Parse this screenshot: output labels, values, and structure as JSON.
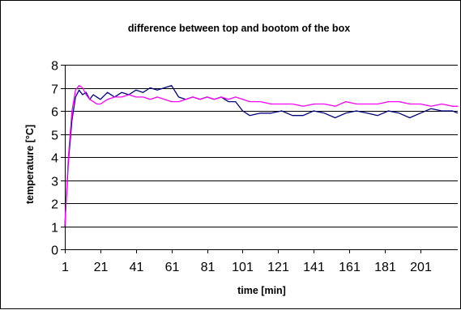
{
  "chart_data": {
    "type": "line",
    "title": "difference between top and bootom of the box",
    "xlabel": "time [min]",
    "ylabel": "temperature [°C]",
    "xlim": [
      1,
      222
    ],
    "ylim": [
      0,
      8
    ],
    "grid": true,
    "legend": "none",
    "x_ticks": [
      "1",
      "21",
      "41",
      "61",
      "81",
      "101",
      "121",
      "141",
      "161",
      "181",
      "201"
    ],
    "x_tick_values": [
      1,
      21,
      41,
      61,
      81,
      101,
      121,
      141,
      161,
      181,
      201
    ],
    "y_ticks": [
      "0",
      "1",
      "2",
      "3",
      "4",
      "5",
      "6",
      "7",
      "8"
    ],
    "y_tick_values": [
      0,
      1,
      2,
      3,
      4,
      5,
      6,
      7,
      8
    ],
    "series": [
      {
        "color": "#000080",
        "x": [
          1,
          3,
          5,
          7,
          9,
          11,
          13,
          15,
          17,
          19,
          21,
          25,
          29,
          33,
          37,
          41,
          45,
          49,
          53,
          57,
          61,
          65,
          69,
          73,
          77,
          81,
          85,
          89,
          93,
          97,
          101,
          105,
          111,
          117,
          123,
          129,
          135,
          141,
          147,
          153,
          159,
          165,
          171,
          177,
          183,
          189,
          195,
          201,
          207,
          213,
          219,
          222
        ],
        "y": [
          1.0,
          3.8,
          5.6,
          6.6,
          6.9,
          6.7,
          6.8,
          6.5,
          6.7,
          6.6,
          6.5,
          6.8,
          6.6,
          6.8,
          6.7,
          6.9,
          6.8,
          7.0,
          6.9,
          7.0,
          7.1,
          6.6,
          6.5,
          6.6,
          6.5,
          6.6,
          6.5,
          6.6,
          6.4,
          6.4,
          6.0,
          5.8,
          5.9,
          5.9,
          6.0,
          5.8,
          5.8,
          6.0,
          5.9,
          5.7,
          5.9,
          6.0,
          5.9,
          5.8,
          6.0,
          5.9,
          5.7,
          5.9,
          6.1,
          6.0,
          6.0,
          5.9
        ]
      },
      {
        "color": "#ff00ff",
        "x": [
          1,
          3,
          5,
          7,
          9,
          11,
          13,
          15,
          17,
          19,
          21,
          25,
          29,
          33,
          37,
          41,
          45,
          49,
          53,
          57,
          61,
          65,
          69,
          73,
          77,
          81,
          85,
          89,
          93,
          97,
          101,
          105,
          111,
          117,
          123,
          129,
          135,
          141,
          147,
          153,
          159,
          165,
          171,
          177,
          183,
          189,
          195,
          201,
          207,
          213,
          219,
          222
        ],
        "y": [
          1.0,
          4.0,
          6.0,
          6.9,
          7.1,
          7.0,
          6.7,
          6.5,
          6.4,
          6.3,
          6.3,
          6.5,
          6.6,
          6.6,
          6.7,
          6.6,
          6.6,
          6.5,
          6.6,
          6.5,
          6.4,
          6.4,
          6.5,
          6.6,
          6.5,
          6.6,
          6.5,
          6.6,
          6.5,
          6.6,
          6.5,
          6.4,
          6.4,
          6.3,
          6.3,
          6.3,
          6.2,
          6.3,
          6.3,
          6.2,
          6.4,
          6.3,
          6.3,
          6.3,
          6.4,
          6.4,
          6.3,
          6.3,
          6.2,
          6.3,
          6.2,
          6.2
        ]
      }
    ]
  }
}
